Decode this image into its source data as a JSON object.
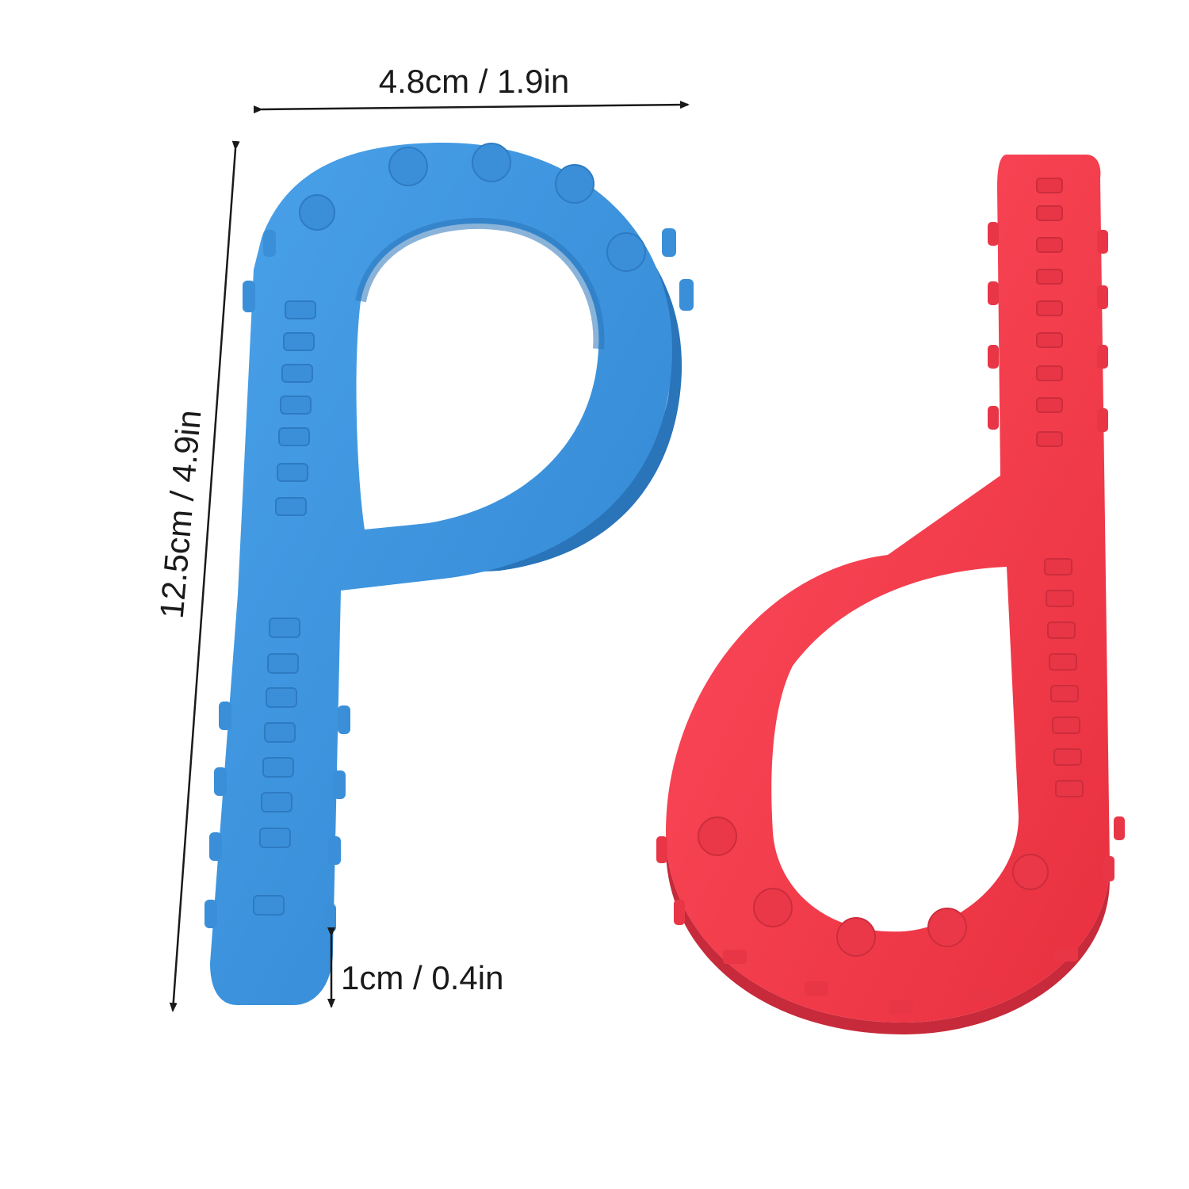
{
  "dimensions": {
    "width_label": "4.8cm / 1.9in",
    "height_label": "12.5cm / 4.9in",
    "thickness_label": "1cm / 0.4in"
  },
  "items": [
    {
      "letter": "p",
      "color": "#3b91db"
    },
    {
      "letter": "d",
      "color": "#ef3c4e"
    }
  ],
  "colors": {
    "blue_shadow": "#2a74ba",
    "blue_highlight": "#5aaaf0",
    "red_shadow": "#c72a3a",
    "red_highlight": "#ff5c6c",
    "annotation": "#1a1a1a"
  }
}
